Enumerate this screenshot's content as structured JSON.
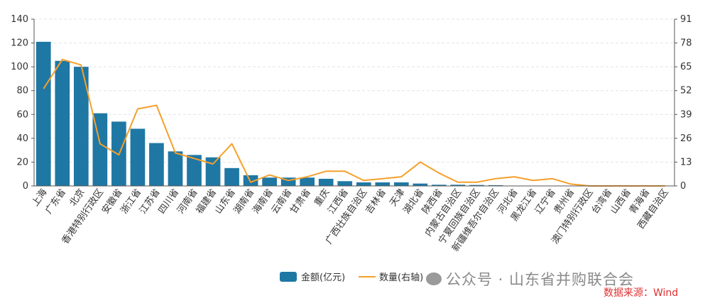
{
  "chart_data": {
    "type": "bar",
    "categories": [
      "上海",
      "广东省",
      "北京",
      "香港特别行政区",
      "安徽省",
      "浙江省",
      "江苏省",
      "四川省",
      "河南省",
      "福建省",
      "山东省",
      "湖南省",
      "海南省",
      "云南省",
      "甘肃省",
      "重庆",
      "江西省",
      "广西壮族自治区",
      "吉林省",
      "天津",
      "湖北省",
      "陕西省",
      "内蒙古自治区",
      "宁夏回族自治区",
      "新疆维吾尔自治区",
      "河北省",
      "黑龙江省",
      "辽宁省",
      "贵州省",
      "澳门特别行政区",
      "台湾省",
      "山西省",
      "青海省",
      "西藏自治区"
    ],
    "series": [
      {
        "name": "金额(亿元)",
        "type": "bar",
        "axis": "left",
        "color": "#1f77a4",
        "values": [
          121,
          105,
          100,
          61,
          54,
          48,
          36,
          29,
          26,
          24,
          15,
          9,
          7,
          7,
          7,
          6,
          4,
          3,
          3,
          3,
          2,
          1,
          1,
          0.8,
          0.6,
          0.3,
          0.2,
          0.1,
          0.1,
          0,
          0,
          0,
          0,
          0
        ]
      },
      {
        "name": "数量(右轴)",
        "type": "line",
        "axis": "right",
        "color": "#f5a02a",
        "values": [
          53,
          69,
          66,
          23,
          17,
          42,
          44,
          18,
          15,
          12,
          23,
          2,
          6,
          3,
          5,
          8,
          8,
          3,
          4,
          5,
          13,
          7,
          2,
          2,
          4,
          5,
          3,
          4,
          1,
          0,
          0,
          0,
          0,
          0
        ]
      }
    ],
    "y_left": {
      "min": 0,
      "max": 140,
      "ticks": [
        0,
        20,
        40,
        60,
        80,
        100,
        120,
        140
      ]
    },
    "y_right": {
      "min": 0,
      "max": 91,
      "ticks": [
        0,
        13,
        26,
        39,
        52,
        65,
        78,
        91
      ]
    },
    "grid": true,
    "legend": "bottom-center"
  },
  "legend": {
    "bar_label": "金额(亿元)",
    "line_label": "数量(右轴)"
  },
  "watermark": {
    "text": "公众号 · 山东省并购联合会"
  },
  "source": {
    "text": "数据来源：Wind"
  },
  "colors": {
    "bar": "#1f77a4",
    "line": "#f5a02a",
    "source": "#e03030"
  }
}
